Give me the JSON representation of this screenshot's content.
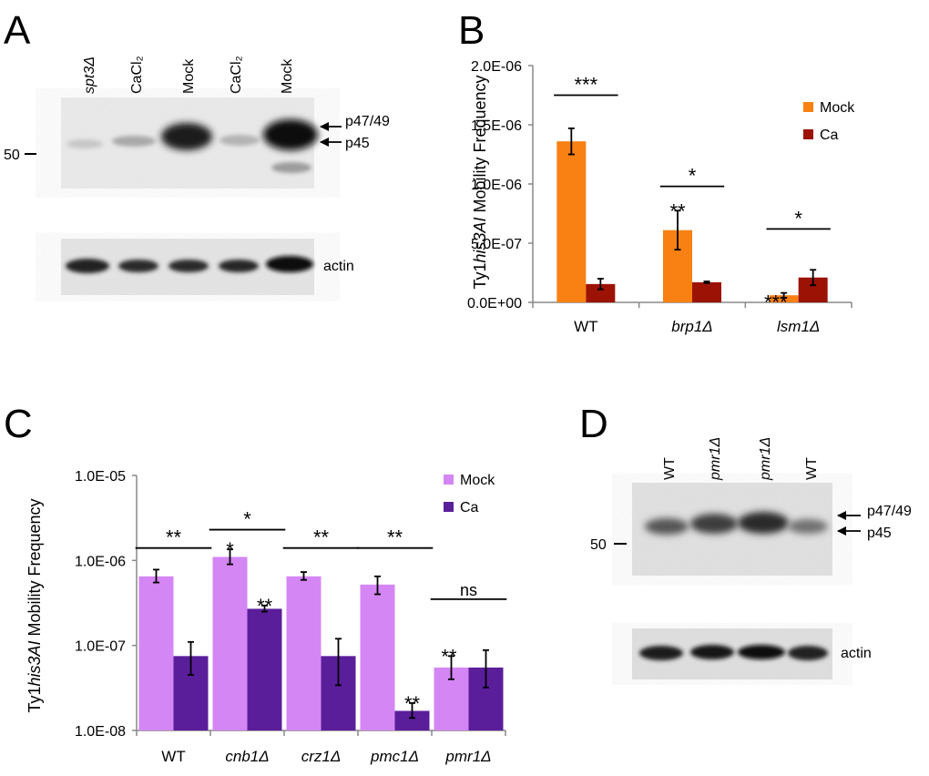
{
  "panels": {
    "A": {
      "letter": "A",
      "lanes": [
        "spt3Δ",
        "CaCl₂",
        "Mock",
        "CaCl₂",
        "Mock"
      ],
      "marker": "50",
      "bands": [
        "p47/49",
        "p45"
      ],
      "loading": "actin"
    },
    "D": {
      "letter": "D",
      "lanes": [
        "WT",
        "pmr1Δ",
        "pmr1Δ",
        "WT"
      ],
      "marker": "50",
      "bands": [
        "p47/49",
        "p45"
      ],
      "loading": "actin"
    }
  },
  "chart_data": [
    {
      "panel": "B",
      "letter": "B",
      "type": "bar",
      "scale": "linear",
      "ylabel_parts": [
        "Ty1",
        "his3AI",
        " Mobility Frequency"
      ],
      "ylim": [
        0,
        2e-06
      ],
      "yticks": [
        {
          "value": 0,
          "label": "0.0E+00"
        },
        {
          "value": 5e-07,
          "label": "5.0E-07"
        },
        {
          "value": 1e-06,
          "label": "1.0E-06"
        },
        {
          "value": 1.5e-06,
          "label": "1.5E-06"
        },
        {
          "value": 2e-06,
          "label": "2.0E-06"
        }
      ],
      "categories": [
        "WT",
        "brp1Δ",
        "lsm1Δ"
      ],
      "category_italic": [
        false,
        true,
        true
      ],
      "series": [
        {
          "name": "Mock",
          "color": "#F98012",
          "values": [
            1.36e-06,
            6.1e-07,
            6e-08
          ],
          "errors": [
            1.1e-07,
            1.65e-07,
            2e-08
          ]
        },
        {
          "name": "Ca",
          "color": "#9C1306",
          "values": [
            1.55e-07,
            1.7e-07,
            2.1e-07
          ],
          "errors": [
            4.5e-08,
            7e-09,
            6.5e-08
          ]
        }
      ],
      "marks": [
        {
          "series": 0,
          "category": 1,
          "text": "**"
        },
        {
          "series": 0,
          "category": 2,
          "text": "***"
        }
      ],
      "comparisons": [
        {
          "category": 0,
          "text": "***",
          "value": 1.75e-06
        },
        {
          "category": 1,
          "text": "*",
          "value": 9.8e-07
        },
        {
          "category": 2,
          "text": "*",
          "value": 6.2e-07
        }
      ]
    },
    {
      "panel": "C",
      "letter": "C",
      "type": "bar",
      "scale": "log",
      "ylabel_parts": [
        "Ty1",
        "his3AI",
        " Mobility Frequency"
      ],
      "ylim": [
        1e-08,
        1e-05
      ],
      "yticks": [
        {
          "value": 1e-08,
          "label": "1.0E-08"
        },
        {
          "value": 1e-07,
          "label": "1.0E-07"
        },
        {
          "value": 1e-06,
          "label": "1.0E-06"
        },
        {
          "value": 1e-05,
          "label": "1.0E-05"
        }
      ],
      "categories": [
        "WT",
        "cnb1Δ",
        "crz1Δ",
        "pmc1Δ",
        "pmr1Δ"
      ],
      "category_italic": [
        false,
        true,
        true,
        true,
        true
      ],
      "series": [
        {
          "name": "Mock",
          "color": "#D486F4",
          "values": [
            6.5e-07,
            1.1e-06,
            6.5e-07,
            5.2e-07,
            5.5e-08
          ],
          "err_lo": [
            5.5e-07,
            9e-07,
            5.9e-07,
            4e-07,
            4e-08
          ],
          "err_hi": [
            7.8e-07,
            1.35e-06,
            7.3e-07,
            6.5e-07,
            7.5e-08
          ]
        },
        {
          "name": "Ca",
          "color": "#5B1E9B",
          "values": [
            7.5e-08,
            2.7e-07,
            7.5e-08,
            1.7e-08,
            5.5e-08
          ],
          "err_lo": [
            4.5e-08,
            2.5e-07,
            3.4e-08,
            1.4e-08,
            3.2e-08
          ],
          "err_hi": [
            1.1e-07,
            2.95e-07,
            1.2e-07,
            2.1e-08,
            8.8e-08
          ]
        }
      ],
      "marks": [
        {
          "series": 0,
          "category": 1,
          "text": "*"
        },
        {
          "series": 1,
          "category": 1,
          "text": "**"
        },
        {
          "series": 1,
          "category": 3,
          "text": "**"
        },
        {
          "series": 0,
          "category": 4,
          "text": "**"
        }
      ],
      "comparisons": [
        {
          "category": 0,
          "text": "**",
          "value": 1.4e-06
        },
        {
          "category": 1,
          "text": "*",
          "value": 2.3e-06
        },
        {
          "category": 2,
          "text": "**",
          "value": 1.4e-06
        },
        {
          "category": 3,
          "text": "**",
          "value": 1.4e-06
        },
        {
          "category": 4,
          "text": "ns",
          "value": 3.5e-07
        }
      ]
    }
  ]
}
